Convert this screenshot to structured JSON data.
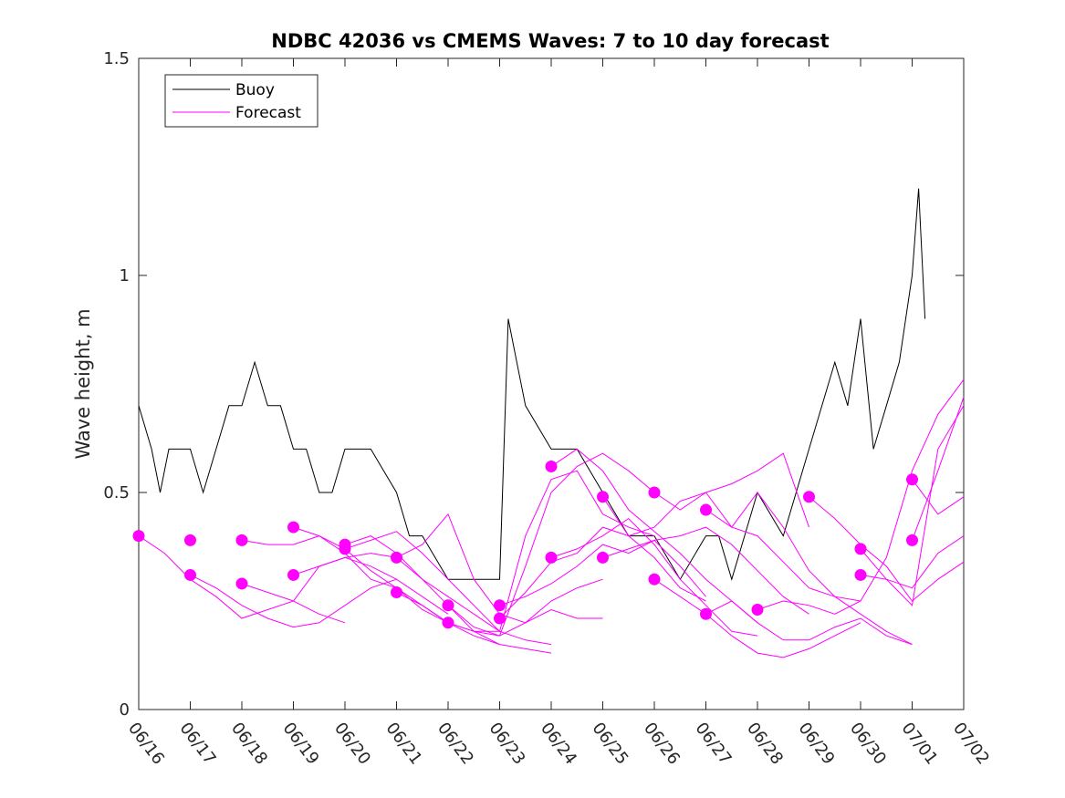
{
  "colors": {
    "buoy": "#000000",
    "forecast": "#ff00ff",
    "axis": "#262626",
    "background": "#ffffff"
  },
  "chart_data": {
    "type": "line",
    "title": "NDBC 42036 vs CMEMS Waves: 7 to 10 day forecast",
    "xlabel": "",
    "ylabel": "Wave height, m",
    "xlim": [
      "06/16",
      "07/02"
    ],
    "ylim": [
      0,
      1.5
    ],
    "x_ticks": [
      "06/16",
      "06/17",
      "06/18",
      "06/19",
      "06/20",
      "06/21",
      "06/22",
      "06/23",
      "06/24",
      "06/25",
      "06/26",
      "06/27",
      "06/28",
      "06/29",
      "06/30",
      "07/01",
      "07/02"
    ],
    "y_ticks": [
      0,
      0.5,
      1,
      1.5
    ],
    "y_tick_labels": [
      "0",
      "0.5",
      "1",
      "1.5"
    ],
    "grid": false,
    "legend": {
      "placement": "top-left",
      "entries": [
        "Buoy",
        "Forecast"
      ]
    },
    "series": [
      {
        "name": "Buoy",
        "style": "line",
        "x": [
          "06/16",
          "06/16 06:00",
          "06/16 10:00",
          "06/16 14:00",
          "06/17",
          "06/17 06:00",
          "06/17 12:00",
          "06/17 18:00",
          "06/18",
          "06/18 06:00",
          "06/18 12:00",
          "06/18 18:00",
          "06/19",
          "06/19 06:00",
          "06/19 12:00",
          "06/19 18:00",
          "06/20",
          "06/20 12:00",
          "06/21",
          "06/21 06:00",
          "06/21 12:00",
          "06/22",
          "06/22 12:00",
          "06/22 18:00",
          "06/23",
          "06/23 04:00",
          "06/23 08:00",
          "06/23 12:00",
          "06/24",
          "06/24 12:00",
          "06/25",
          "06/25 12:00",
          "06/26",
          "06/26 12:00",
          "06/27",
          "06/27 06:00",
          "06/27 12:00",
          "06/27 18:00",
          "06/28",
          "06/28 12:00",
          "06/29",
          "06/29 12:00",
          "06/29 18:00",
          "06/30",
          "06/30 06:00",
          "06/30 12:00",
          "06/30 18:00",
          "07/01",
          "07/01 03:00",
          "07/01 06:00"
        ],
        "y": [
          0.7,
          0.6,
          0.5,
          0.6,
          0.6,
          0.5,
          0.6,
          0.7,
          0.7,
          0.8,
          0.7,
          0.7,
          0.6,
          0.6,
          0.5,
          0.5,
          0.6,
          0.6,
          0.5,
          0.4,
          0.4,
          0.3,
          0.3,
          0.3,
          0.3,
          0.9,
          0.8,
          0.7,
          0.6,
          0.6,
          0.5,
          0.4,
          0.4,
          0.3,
          0.4,
          0.4,
          0.3,
          0.4,
          0.5,
          0.4,
          0.6,
          0.8,
          0.7,
          0.9,
          0.6,
          0.7,
          0.8,
          1.0,
          1.2,
          0.9
        ]
      },
      {
        "name": "Forecast",
        "style": "line",
        "x": [
          "06/16",
          "06/16 12:00",
          "06/17",
          "06/17 12:00",
          "06/18",
          "06/18 12:00",
          "06/19",
          "06/19 12:00",
          "06/20"
        ],
        "y": [
          0.4,
          0.36,
          0.3,
          0.26,
          0.21,
          0.23,
          0.25,
          0.22,
          0.2
        ]
      },
      {
        "name": "Forecast",
        "style": "line",
        "x": [
          "06/17",
          "06/17 12:00",
          "06/18",
          "06/18 12:00",
          "06/19",
          "06/19 12:00",
          "06/20",
          "06/20 12:00",
          "06/21"
        ],
        "y": [
          0.31,
          0.28,
          0.24,
          0.21,
          0.19,
          0.2,
          0.24,
          0.28,
          0.3
        ]
      },
      {
        "name": "Forecast",
        "style": "line",
        "x": [
          "06/18",
          "06/18 12:00",
          "06/19",
          "06/19 12:00",
          "06/20",
          "06/20 12:00",
          "06/21",
          "06/21 12:00",
          "06/22"
        ],
        "y": [
          0.39,
          0.38,
          0.38,
          0.4,
          0.36,
          0.3,
          0.28,
          0.24,
          0.2
        ]
      },
      {
        "name": "Forecast",
        "style": "line",
        "x": [
          "06/18",
          "06/18 12:00",
          "06/19",
          "06/19 12:00",
          "06/20",
          "06/20 12:00",
          "06/21",
          "06/21 12:00",
          "06/22"
        ],
        "y": [
          0.29,
          0.27,
          0.25,
          0.33,
          0.35,
          0.33,
          0.3,
          0.26,
          0.22
        ]
      },
      {
        "name": "Forecast",
        "style": "line",
        "x": [
          "06/19",
          "06/19 12:00",
          "06/20",
          "06/20 12:00",
          "06/21",
          "06/21 12:00",
          "06/22",
          "06/22 12:00",
          "06/23"
        ],
        "y": [
          0.42,
          0.4,
          0.37,
          0.32,
          0.28,
          0.23,
          0.2,
          0.17,
          0.15
        ]
      },
      {
        "name": "Forecast",
        "style": "line",
        "x": [
          "06/19",
          "06/19 12:00",
          "06/20",
          "06/20 12:00",
          "06/21",
          "06/21 12:00",
          "06/22",
          "06/22 12:00",
          "06/23"
        ],
        "y": [
          0.31,
          0.33,
          0.35,
          0.36,
          0.35,
          0.3,
          0.26,
          0.22,
          0.18
        ]
      },
      {
        "name": "Forecast",
        "style": "line",
        "x": [
          "06/20",
          "06/20 12:00",
          "06/21",
          "06/21 12:00",
          "06/22",
          "06/22 12:00",
          "06/23",
          "06/23 12:00",
          "06/24"
        ],
        "y": [
          0.38,
          0.4,
          0.36,
          0.3,
          0.24,
          0.18,
          0.15,
          0.14,
          0.13
        ]
      },
      {
        "name": "Forecast",
        "style": "line",
        "x": [
          "06/20",
          "06/20 12:00",
          "06/21",
          "06/21 12:00",
          "06/22",
          "06/22 12:00",
          "06/23",
          "06/23 12:00",
          "06/24"
        ],
        "y": [
          0.37,
          0.39,
          0.41,
          0.36,
          0.3,
          0.24,
          0.18,
          0.16,
          0.15
        ]
      },
      {
        "name": "Forecast",
        "style": "line",
        "x": [
          "06/21",
          "06/21 12:00",
          "06/22",
          "06/22 12:00",
          "06/23",
          "06/23 12:00",
          "06/24",
          "06/24 12:00",
          "06/25"
        ],
        "y": [
          0.35,
          0.38,
          0.45,
          0.3,
          0.22,
          0.2,
          0.23,
          0.21,
          0.21
        ]
      },
      {
        "name": "Forecast",
        "style": "line",
        "x": [
          "06/21",
          "06/21 12:00",
          "06/22",
          "06/22 12:00",
          "06/23",
          "06/23 12:00",
          "06/24",
          "06/24 12:00",
          "06/25"
        ],
        "y": [
          0.27,
          0.24,
          0.2,
          0.18,
          0.17,
          0.2,
          0.25,
          0.28,
          0.3
        ]
      },
      {
        "name": "Forecast",
        "style": "line",
        "x": [
          "06/22",
          "06/22 12:00",
          "06/23",
          "06/23 12:00",
          "06/24",
          "06/24 12:00",
          "06/25",
          "06/25 12:00",
          "06/26"
        ],
        "y": [
          0.24,
          0.19,
          0.17,
          0.33,
          0.5,
          0.56,
          0.59,
          0.55,
          0.5
        ]
      },
      {
        "name": "Forecast",
        "style": "line",
        "x": [
          "06/22",
          "06/22 12:00",
          "06/23",
          "06/23 12:00",
          "06/24",
          "06/24 12:00",
          "06/25",
          "06/25 12:00",
          "06/26"
        ],
        "y": [
          0.2,
          0.18,
          0.18,
          0.4,
          0.53,
          0.55,
          0.45,
          0.42,
          0.4
        ]
      },
      {
        "name": "Forecast",
        "style": "line",
        "x": [
          "06/23",
          "06/23 12:00",
          "06/24",
          "06/24 12:00",
          "06/25",
          "06/25 12:00",
          "06/26",
          "06/26 12:00",
          "06/27"
        ],
        "y": [
          0.24,
          0.26,
          0.29,
          0.33,
          0.38,
          0.36,
          0.39,
          0.33,
          0.26
        ]
      },
      {
        "name": "Forecast",
        "style": "line",
        "x": [
          "06/23",
          "06/23 12:00",
          "06/24",
          "06/24 12:00",
          "06/25",
          "06/25 12:00",
          "06/26",
          "06/26 12:00",
          "06/27"
        ],
        "y": [
          0.21,
          0.27,
          0.34,
          0.36,
          0.42,
          0.4,
          0.35,
          0.28,
          0.25
        ]
      },
      {
        "name": "Forecast",
        "style": "line",
        "x": [
          "06/24",
          "06/24 12:00",
          "06/25",
          "06/25 12:00",
          "06/26",
          "06/26 12:00",
          "06/27",
          "06/27 12:00",
          "06/28"
        ],
        "y": [
          0.56,
          0.6,
          0.55,
          0.46,
          0.41,
          0.36,
          0.3,
          0.25,
          0.2
        ]
      },
      {
        "name": "Forecast",
        "style": "line",
        "x": [
          "06/24",
          "06/24 12:00",
          "06/25",
          "06/25 12:00",
          "06/26",
          "06/26 12:00",
          "06/27",
          "06/27 12:00",
          "06/28"
        ],
        "y": [
          0.35,
          0.37,
          0.4,
          0.44,
          0.38,
          0.3,
          0.24,
          0.18,
          0.17
        ]
      },
      {
        "name": "Forecast",
        "style": "line",
        "x": [
          "06/25",
          "06/25 12:00",
          "06/26",
          "06/26 12:00",
          "06/27",
          "06/27 12:00",
          "06/28",
          "06/28 12:00",
          "06/29"
        ],
        "y": [
          0.49,
          0.4,
          0.42,
          0.48,
          0.5,
          0.52,
          0.55,
          0.59,
          0.42
        ]
      },
      {
        "name": "Forecast",
        "style": "line",
        "x": [
          "06/25",
          "06/25 12:00",
          "06/26",
          "06/26 12:00",
          "06/27",
          "06/27 12:00",
          "06/28",
          "06/28 12:00",
          "06/29"
        ],
        "y": [
          0.35,
          0.37,
          0.39,
          0.4,
          0.42,
          0.38,
          0.32,
          0.26,
          0.22
        ]
      },
      {
        "name": "Forecast",
        "style": "line",
        "x": [
          "06/26",
          "06/26 12:00",
          "06/27",
          "06/27 12:00",
          "06/28",
          "06/28 12:00",
          "06/29",
          "06/29 12:00",
          "06/30"
        ],
        "y": [
          0.5,
          0.46,
          0.5,
          0.42,
          0.4,
          0.34,
          0.28,
          0.26,
          0.25
        ]
      },
      {
        "name": "Forecast",
        "style": "line",
        "x": [
          "06/26",
          "06/26 12:00",
          "06/27",
          "06/27 12:00",
          "06/28",
          "06/28 12:00",
          "06/29",
          "06/29 12:00",
          "06/30"
        ],
        "y": [
          0.3,
          0.26,
          0.22,
          0.17,
          0.13,
          0.12,
          0.14,
          0.17,
          0.2
        ]
      },
      {
        "name": "Forecast",
        "style": "line",
        "x": [
          "06/27",
          "06/27 12:00",
          "06/28",
          "06/28 12:00",
          "06/29",
          "06/29 12:00",
          "06/30",
          "06/30 12:00",
          "07/01"
        ],
        "y": [
          0.46,
          0.42,
          0.5,
          0.42,
          0.32,
          0.26,
          0.22,
          0.18,
          0.15
        ]
      },
      {
        "name": "Forecast",
        "style": "line",
        "x": [
          "06/27",
          "06/27 12:00",
          "06/28",
          "06/28 12:00",
          "06/29",
          "06/29 12:00",
          "06/30",
          "06/30 12:00",
          "07/01"
        ],
        "y": [
          0.22,
          0.25,
          0.2,
          0.16,
          0.16,
          0.19,
          0.21,
          0.17,
          0.15
        ]
      },
      {
        "name": "Forecast",
        "style": "line",
        "x": [
          "06/28",
          "06/28 12:00",
          "06/29",
          "06/29 12:00",
          "06/30",
          "06/30 12:00",
          "07/01",
          "07/01 12:00",
          "07/02"
        ],
        "y": [
          0.23,
          0.25,
          0.24,
          0.22,
          0.25,
          0.35,
          0.55,
          0.68,
          0.76
        ]
      },
      {
        "name": "Forecast",
        "style": "line",
        "x": [
          "06/29",
          "06/29 12:00",
          "06/30",
          "06/30 12:00",
          "07/01",
          "07/01 12:00",
          "07/02"
        ],
        "y": [
          0.49,
          0.44,
          0.38,
          0.33,
          0.25,
          0.3,
          0.34
        ]
      },
      {
        "name": "Forecast",
        "style": "line",
        "x": [
          "06/30",
          "06/30 12:00",
          "07/01",
          "07/01 12:00",
          "07/02"
        ],
        "y": [
          0.37,
          0.3,
          0.24,
          0.6,
          0.7
        ]
      },
      {
        "name": "Forecast",
        "style": "line",
        "x": [
          "06/30",
          "06/30 12:00",
          "07/01",
          "07/01 12:00",
          "07/02"
        ],
        "y": [
          0.31,
          0.3,
          0.28,
          0.36,
          0.4
        ]
      },
      {
        "name": "Forecast",
        "style": "line",
        "x": [
          "07/01",
          "07/01 12:00",
          "07/02"
        ],
        "y": [
          0.53,
          0.45,
          0.49
        ]
      },
      {
        "name": "Forecast",
        "style": "line",
        "x": [
          "07/01",
          "07/01 12:00",
          "07/02"
        ],
        "y": [
          0.39,
          0.55,
          0.72
        ]
      }
    ],
    "markers": {
      "name": "Forecast",
      "style": "dot",
      "x": [
        "06/16",
        "06/17",
        "06/17",
        "06/18",
        "06/18",
        "06/19",
        "06/19",
        "06/20",
        "06/20",
        "06/21",
        "06/21",
        "06/22",
        "06/22",
        "06/23",
        "06/23",
        "06/24",
        "06/24",
        "06/25",
        "06/25",
        "06/26",
        "06/26",
        "06/27",
        "06/27",
        "06/28",
        "06/29",
        "06/30",
        "06/30",
        "07/01",
        "07/01"
      ],
      "y": [
        0.4,
        0.39,
        0.31,
        0.39,
        0.29,
        0.42,
        0.31,
        0.38,
        0.37,
        0.35,
        0.27,
        0.24,
        0.2,
        0.24,
        0.21,
        0.56,
        0.35,
        0.49,
        0.35,
        0.5,
        0.3,
        0.46,
        0.22,
        0.23,
        0.49,
        0.37,
        0.31,
        0.53,
        0.39
      ]
    }
  }
}
